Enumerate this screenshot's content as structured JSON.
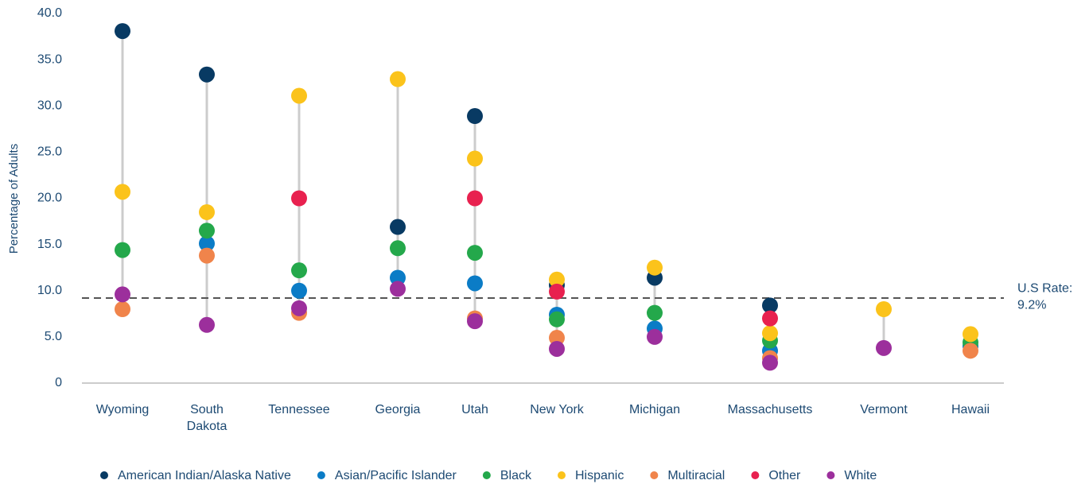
{
  "chart_data": {
    "type": "dot",
    "ylabel": "Percentage of Adults",
    "categories": [
      "Wyoming",
      "South\nDakota",
      "Tennessee",
      "Georgia",
      "Utah",
      "New York",
      "Michigan",
      "Massachusetts",
      "Vermont",
      "Hawaii"
    ],
    "series": [
      {
        "name": "American Indian/Alaska Native",
        "color": "#083a63",
        "values": [
          38.1,
          33.4,
          null,
          16.9,
          28.9,
          10.6,
          11.4,
          8.4,
          null,
          null
        ]
      },
      {
        "name": "Asian/Pacific Islander",
        "color": "#0b7cc6",
        "values": [
          null,
          15.1,
          10.0,
          11.4,
          10.8,
          7.4,
          5.9,
          3.5,
          null,
          4.0
        ]
      },
      {
        "name": "Black",
        "color": "#24a84b",
        "values": [
          14.4,
          16.5,
          12.2,
          14.6,
          14.1,
          6.9,
          7.6,
          4.6,
          null,
          4.4
        ]
      },
      {
        "name": "Hispanic",
        "color": "#fbc31b",
        "values": [
          20.7,
          18.5,
          31.1,
          32.9,
          24.3,
          11.2,
          12.5,
          5.4,
          8.0,
          5.3
        ]
      },
      {
        "name": "Multiracial",
        "color": "#f0844b",
        "values": [
          8.0,
          13.8,
          7.6,
          null,
          7.0,
          4.9,
          null,
          2.7,
          null,
          3.5
        ]
      },
      {
        "name": "Other",
        "color": "#e8214f",
        "values": [
          null,
          null,
          20.0,
          null,
          20.0,
          9.9,
          null,
          7.0,
          null,
          null
        ]
      },
      {
        "name": "White",
        "color": "#9c2f9c",
        "values": [
          9.6,
          6.3,
          8.1,
          10.2,
          6.7,
          3.7,
          5.0,
          2.2,
          3.8,
          null
        ]
      }
    ],
    "reference_line": {
      "value": 9.2,
      "label": "U.S Rate:",
      "value_label": "9.2%"
    },
    "ylim": [
      0,
      40
    ],
    "yticks": [
      0,
      {
        "value": 5,
        "label": "5.0"
      },
      {
        "value": 10,
        "label": "10.0"
      },
      {
        "value": 15,
        "label": "15.0"
      },
      {
        "value": 20,
        "label": "20.0"
      },
      {
        "value": 25,
        "label": "25.0"
      },
      {
        "value": 30,
        "label": "30.0"
      },
      {
        "value": 35,
        "label": "35.0"
      },
      {
        "value": 40,
        "label": "40.0"
      }
    ],
    "grid": false,
    "legend": "bottom"
  }
}
